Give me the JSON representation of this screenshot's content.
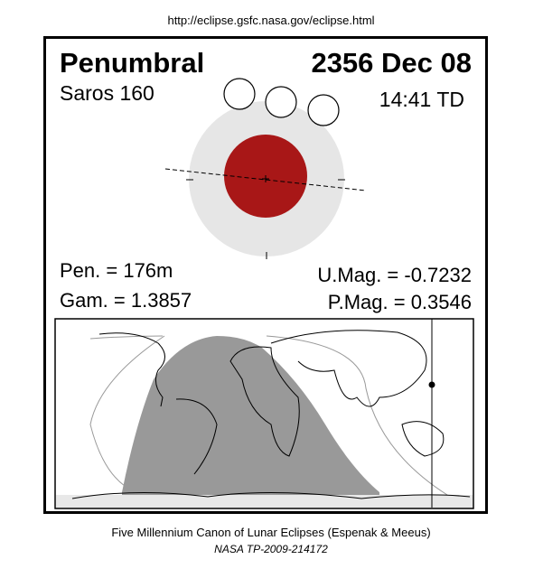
{
  "header": {
    "url": "http://eclipse.gsfc.nasa.gov/eclipse.html"
  },
  "eclipse": {
    "type": "Penumbral",
    "date": "2356 Dec 08",
    "saros": "Saros 160",
    "time": "14:41 TD",
    "penumbral_duration": "Pen. = 176m",
    "gamma": "Gam. = 1.3857",
    "umbral_magnitude": "U.Mag. = -0.7232",
    "penumbral_magnitude": "P.Mag. = 0.3546"
  },
  "footer": {
    "title": "Five Millennium Canon of Lunar Eclipses (Espenak & Meeus)",
    "reference": "NASA TP-2009-214172"
  }
}
